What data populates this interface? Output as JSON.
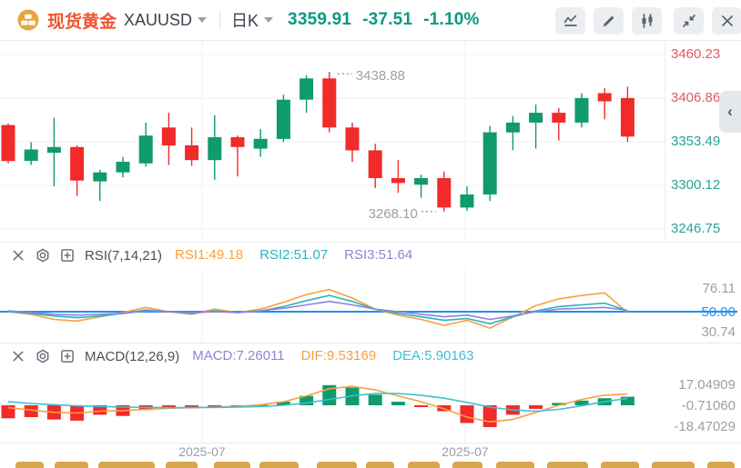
{
  "header": {
    "brand": "现货黄金",
    "symbol": "XAUUSD",
    "period": "日K",
    "price": "3359.91",
    "change": "-37.51",
    "change_pct": "-1.10%",
    "quote_color": "#089981",
    "toolbar_icons": [
      "indicator-icon",
      "draw-icon",
      "candle-style-icon",
      "collapse-icon",
      "close-icon"
    ]
  },
  "main_chart": {
    "axis_labels": [
      {
        "text": "3460.23",
        "color": "#e05a5e"
      },
      {
        "text": "3406.86",
        "color": "#e05a5e"
      },
      {
        "text": "3353.49",
        "color": "#27a393"
      },
      {
        "text": "3300.12",
        "color": "#27a393"
      },
      {
        "text": "3246.75",
        "color": "#27a393"
      }
    ],
    "high_label": "3438.88",
    "low_label": "3268.10",
    "collapse_arrow": "‹"
  },
  "rsi": {
    "name": "RSI(7,14,21)",
    "params": [
      {
        "text": "RSI1:49.18",
        "color": "#f6a13c"
      },
      {
        "text": "RSI2:51.07",
        "color": "#2ab3c0"
      },
      {
        "text": "RSI3:51.64",
        "color": "#8f83d8"
      }
    ],
    "right_labels": [
      {
        "text": "76.11",
        "color": "#9aa0a8"
      },
      {
        "text": "50.00",
        "color": "#1f8ff0"
      },
      {
        "text": "30.74",
        "color": "#9aa0a8"
      }
    ]
  },
  "macd": {
    "name": "MACD(12,26,9)",
    "params": [
      {
        "text": "MACD:7.26011",
        "color": "#8f83d8"
      },
      {
        "text": "DIF:9.53169",
        "color": "#f6a13c"
      },
      {
        "text": "DEA:5.90163",
        "color": "#3bc0d4"
      }
    ],
    "right_labels": [
      {
        "text": "17.04909",
        "color": "#9aa0a8"
      },
      {
        "text": "-0.71060",
        "color": "#9aa0a8"
      },
      {
        "text": "-18.47029",
        "color": "#9aa0a8"
      }
    ]
  },
  "x_axis": {
    "labels": [
      "2025-07",
      "2025-07"
    ]
  },
  "bottom_toolbar": {
    "color": "#d8a64b",
    "buttons": [
      [
        17,
        31
      ],
      [
        60,
        37
      ],
      [
        108,
        62
      ],
      [
        182,
        35
      ],
      [
        235,
        40
      ],
      [
        285,
        43
      ],
      [
        348,
        44
      ],
      [
        402,
        31
      ],
      [
        448,
        35
      ],
      [
        497,
        33
      ],
      [
        545,
        42
      ],
      [
        601,
        45
      ],
      [
        660,
        42
      ],
      [
        716,
        47
      ],
      [
        777,
        30
      ]
    ]
  },
  "chart_data": [
    {
      "type": "candlestick",
      "title": "现货黄金 XAUUSD 日K",
      "up_color": "#0f9b6c",
      "down_color": "#f12a2a",
      "price_ticks": [
        3460.23,
        3406.86,
        3353.49,
        3300.12,
        3246.75
      ],
      "high_annotation": "3438.88",
      "low_annotation": "3268.10",
      "last_close": 3359.91,
      "candles": [
        [
          3374,
          3376,
          3327,
          3330
        ],
        [
          3330,
          3353,
          3325,
          3344
        ],
        [
          3340,
          3383,
          3299,
          3347
        ],
        [
          3347,
          3349,
          3287,
          3306
        ],
        [
          3305,
          3319,
          3281,
          3316
        ],
        [
          3316,
          3335,
          3310,
          3329
        ],
        [
          3327,
          3377,
          3323,
          3361
        ],
        [
          3371,
          3389,
          3325,
          3349
        ],
        [
          3349,
          3371,
          3324,
          3331
        ],
        [
          3331,
          3386,
          3307,
          3359
        ],
        [
          3359,
          3361,
          3311,
          3347
        ],
        [
          3345,
          3369,
          3335,
          3357
        ],
        [
          3357,
          3411,
          3353,
          3405
        ],
        [
          3405,
          3435,
          3389,
          3431
        ],
        [
          3431,
          3438.88,
          3365,
          3371
        ],
        [
          3371,
          3377,
          3329,
          3343
        ],
        [
          3343,
          3351,
          3297,
          3309
        ],
        [
          3309,
          3331,
          3291,
          3303
        ],
        [
          3301,
          3313,
          3285,
          3309
        ],
        [
          3309,
          3317,
          3268.1,
          3273
        ],
        [
          3273,
          3299,
          3269,
          3289
        ],
        [
          3289,
          3373,
          3281,
          3365
        ],
        [
          3365,
          3385,
          3343,
          3377
        ],
        [
          3377,
          3399,
          3345,
          3389
        ],
        [
          3389,
          3395,
          3355,
          3377
        ],
        [
          3377,
          3413,
          3371,
          3407
        ],
        [
          3413,
          3419,
          3381,
          3403
        ],
        [
          3407,
          3421,
          3353,
          3359.91
        ]
      ]
    },
    {
      "type": "line",
      "title": "RSI(7,14,21)",
      "ylim": [
        30.74,
        76.11
      ],
      "baseline": {
        "value": 50.0,
        "color": "#1f8ff0"
      },
      "series": [
        {
          "name": "RSI1",
          "color": "#f6a13c",
          "values": [
            50,
            47,
            41,
            39,
            44,
            49,
            55,
            50,
            47,
            53,
            49,
            53,
            61,
            70,
            76.11,
            66,
            53,
            46,
            41,
            34,
            40,
            30.74,
            44,
            57,
            65,
            69,
            72,
            49.18
          ]
        },
        {
          "name": "RSI2",
          "color": "#2ab3c0",
          "values": [
            50,
            48,
            45,
            43,
            45,
            48,
            52,
            50,
            48,
            51,
            49,
            51,
            56,
            63,
            69,
            62,
            53,
            48,
            44,
            40,
            42,
            36,
            44,
            51,
            56,
            58,
            60,
            51.07
          ]
        },
        {
          "name": "RSI3",
          "color": "#8f83d8",
          "values": [
            51,
            49,
            47,
            46,
            47,
            48,
            51,
            50,
            49,
            50,
            49,
            51,
            54,
            58,
            62,
            58,
            53,
            50,
            47,
            44,
            46,
            41,
            45,
            50,
            53,
            54,
            55,
            51.64
          ]
        }
      ]
    },
    {
      "type": "bar",
      "title": "MACD(12,26,9)",
      "ylim": [
        -18.47029,
        17.04909
      ],
      "bar_up_color": "#0f9b6c",
      "bar_down_color": "#f12a2a",
      "histogram": [
        -11,
        -10,
        -12,
        -13,
        -8,
        -9,
        -4,
        -3,
        -2,
        -1,
        -0.6,
        0.6,
        3,
        8,
        17.04909,
        15,
        9,
        3,
        -1.5,
        -5,
        -15,
        -18.47029,
        -8,
        -3,
        2,
        4,
        6,
        7.26011
      ],
      "series": [
        {
          "name": "DIF",
          "color": "#f6a13c",
          "values": [
            -2,
            -4,
            -6,
            -6.5,
            -5,
            -4.5,
            -3.5,
            -2.5,
            -2,
            -1.5,
            -1,
            0.5,
            3,
            8,
            14,
            16,
            13,
            8,
            3,
            -3,
            -10,
            -14,
            -12,
            -6,
            0,
            5,
            8.5,
            9.53169
          ]
        },
        {
          "name": "DEA",
          "color": "#3bc0d4",
          "values": [
            3,
            1.5,
            0.5,
            -0.5,
            -1,
            -1.5,
            -1.8,
            -2,
            -2,
            -1.8,
            -1.5,
            -1,
            0,
            2,
            5,
            8,
            10,
            10,
            8.5,
            6,
            2.5,
            -1.5,
            -4,
            -5,
            -3.5,
            -0.5,
            3,
            5.90163
          ]
        }
      ]
    }
  ]
}
